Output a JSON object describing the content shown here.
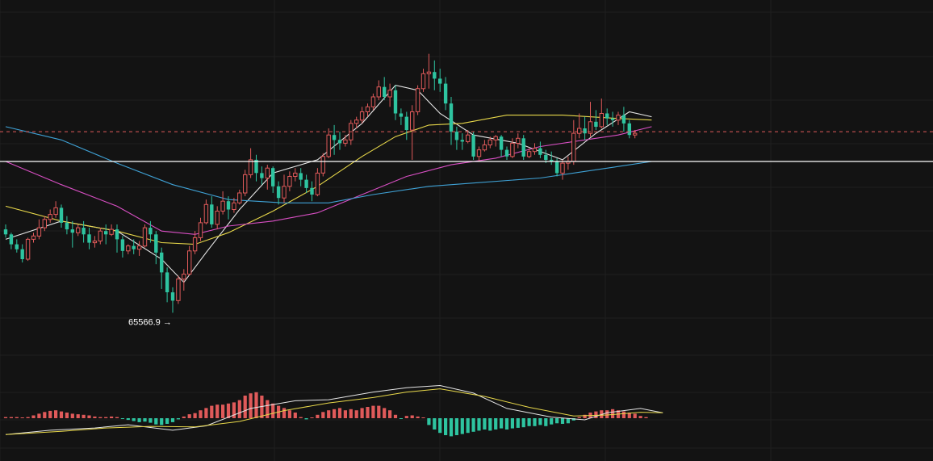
{
  "colors": {
    "background": "#131313",
    "grid": "#1f1f1f",
    "up": "#e05a5a",
    "down": "#2ec4a0",
    "ma_fast": "#e6e6e6",
    "ma_mid": "#e8d84a",
    "ma_slow": "#d94fc4",
    "ma_long": "#3fa2d6",
    "dif": "#e6e6e6",
    "dea": "#e8d84a",
    "reference_line": "#ffffff",
    "current_price_line": "#e05a5a"
  },
  "chart_data": {
    "type": "candlestick",
    "title": "",
    "min_label": {
      "value": "65566.9",
      "arrow": "→",
      "candle_index": 30
    },
    "reference_level": 74700,
    "current_price_level": 76500,
    "price_range": [
      63000,
      82500
    ],
    "grid": true,
    "candles": [
      [
        70600,
        70900,
        70300,
        70100
      ],
      [
        70300,
        70400,
        69700,
        69400
      ],
      [
        69700,
        70000,
        69400,
        69200
      ],
      [
        69400,
        69700,
        68800,
        68600
      ],
      [
        68800,
        70100,
        70000,
        68700
      ],
      [
        70000,
        70400,
        70200,
        69800
      ],
      [
        70200,
        71200,
        70700,
        70000
      ],
      [
        70700,
        71400,
        71200,
        70500
      ],
      [
        71200,
        71800,
        71500,
        71000
      ],
      [
        71500,
        72300,
        71900,
        71300
      ],
      [
        71900,
        72100,
        71000,
        70700
      ],
      [
        71000,
        71400,
        70600,
        70300
      ],
      [
        70600,
        71100,
        70400,
        69500
      ],
      [
        70400,
        70900,
        70700,
        70200
      ],
      [
        70700,
        71100,
        70300,
        69800
      ],
      [
        70300,
        70700,
        69800,
        69400
      ],
      [
        69800,
        70200,
        69900,
        69500
      ],
      [
        69900,
        70700,
        70500,
        69700
      ],
      [
        70500,
        70900,
        70300,
        69700
      ],
      [
        70300,
        70900,
        70600,
        70200
      ],
      [
        70600,
        70900,
        70000,
        69200
      ],
      [
        70000,
        70200,
        69300,
        68900
      ],
      [
        69300,
        69700,
        69600,
        69100
      ],
      [
        69600,
        70000,
        69400,
        69100
      ],
      [
        69400,
        69900,
        69600,
        69000
      ],
      [
        69600,
        70900,
        70700,
        69500
      ],
      [
        70700,
        71100,
        70300,
        69800
      ],
      [
        70300,
        70500,
        69200,
        68500
      ],
      [
        69200,
        69500,
        68000,
        67000
      ],
      [
        68000,
        68300,
        66800,
        66200
      ],
      [
        66800,
        67100,
        66300,
        65567
      ],
      [
        66300,
        67800,
        67600,
        66100
      ],
      [
        67600,
        68200,
        67900,
        66900
      ],
      [
        67900,
        69600,
        69300,
        67800
      ],
      [
        69300,
        70500,
        70100,
        69100
      ],
      [
        70100,
        71300,
        71000,
        69900
      ],
      [
        71000,
        72400,
        72100,
        70900
      ],
      [
        72100,
        72600,
        70900,
        70700
      ],
      [
        70900,
        72000,
        71700,
        70600
      ],
      [
        71700,
        72900,
        72300,
        71500
      ],
      [
        72300,
        72600,
        71800,
        71200
      ],
      [
        71800,
        72500,
        72200,
        71600
      ],
      [
        72200,
        73000,
        72800,
        72100
      ],
      [
        72800,
        74200,
        73900,
        72600
      ],
      [
        73900,
        75500,
        74800,
        73700
      ],
      [
        74800,
        75100,
        74000,
        73500
      ],
      [
        74000,
        74400,
        73700,
        73300
      ],
      [
        73700,
        74500,
        74300,
        73000
      ],
      [
        74300,
        74400,
        73200,
        72800
      ],
      [
        73200,
        73500,
        72500,
        72100
      ],
      [
        72500,
        73900,
        73200,
        72200
      ],
      [
        73200,
        74100,
        73800,
        72900
      ],
      [
        73800,
        74300,
        74000,
        73500
      ],
      [
        74000,
        74300,
        73600,
        73200
      ],
      [
        73600,
        73900,
        73100,
        72800
      ],
      [
        73100,
        73500,
        72700,
        72300
      ],
      [
        72700,
        74300,
        74000,
        72600
      ],
      [
        74000,
        75200,
        75000,
        73800
      ],
      [
        75000,
        76700,
        76300,
        74900
      ],
      [
        76300,
        76900,
        76000,
        75100
      ],
      [
        76000,
        76500,
        75800,
        75400
      ],
      [
        75800,
        76300,
        76000,
        75600
      ],
      [
        76000,
        77200,
        77000,
        75700
      ],
      [
        77000,
        77400,
        77200,
        76700
      ],
      [
        77200,
        78000,
        77700,
        77000
      ],
      [
        77700,
        78200,
        78000,
        77400
      ],
      [
        78000,
        78800,
        78600,
        77800
      ],
      [
        78600,
        79600,
        79200,
        78400
      ],
      [
        79200,
        79800,
        78600,
        78400
      ],
      [
        78600,
        79400,
        79000,
        78000
      ],
      [
        79000,
        79300,
        77600,
        77200
      ],
      [
        77600,
        77900,
        77400,
        76900
      ],
      [
        77400,
        77700,
        76600,
        76000
      ],
      [
        76600,
        78100,
        77700,
        74800
      ],
      [
        77700,
        79300,
        79100,
        77500
      ],
      [
        79100,
        80300,
        80000,
        78900
      ],
      [
        80000,
        81200,
        80100,
        79100
      ],
      [
        80100,
        80800,
        79700,
        79000
      ],
      [
        79700,
        80300,
        79400,
        78900
      ],
      [
        79400,
        79800,
        78200,
        77800
      ],
      [
        78200,
        78600,
        76500,
        75700
      ],
      [
        76500,
        76800,
        76000,
        75400
      ],
      [
        76000,
        76400,
        75900,
        75400
      ],
      [
        75900,
        76600,
        76300,
        75800
      ],
      [
        76300,
        76500,
        75000,
        74800
      ],
      [
        75000,
        75600,
        75400,
        74700
      ],
      [
        75400,
        76000,
        75700,
        75300
      ],
      [
        75700,
        76200,
        76000,
        75500
      ],
      [
        76000,
        76300,
        76200,
        75600
      ],
      [
        76200,
        76300,
        75400,
        75000
      ],
      [
        75400,
        75600,
        75000,
        74800
      ],
      [
        75000,
        76100,
        75800,
        74900
      ],
      [
        75800,
        76400,
        76100,
        75500
      ],
      [
        76100,
        76300,
        75000,
        74800
      ],
      [
        75000,
        75500,
        75300,
        74900
      ],
      [
        75300,
        75800,
        75500,
        75100
      ],
      [
        75500,
        75900,
        75100,
        74900
      ],
      [
        75100,
        75400,
        74800,
        74600
      ],
      [
        74800,
        75300,
        74700,
        74500
      ],
      [
        74700,
        74900,
        74000,
        73800
      ],
      [
        74000,
        74800,
        74600,
        73600
      ],
      [
        74600,
        75000,
        74700,
        74200
      ],
      [
        74700,
        77200,
        76400,
        74500
      ],
      [
        76400,
        77600,
        76700,
        76100
      ],
      [
        76700,
        77400,
        76400,
        76000
      ],
      [
        76400,
        78300,
        77100,
        76200
      ],
      [
        77100,
        77800,
        76800,
        76600
      ],
      [
        76800,
        78500,
        77600,
        76700
      ],
      [
        77600,
        77900,
        77300,
        76900
      ],
      [
        77300,
        77700,
        77200,
        76800
      ],
      [
        77200,
        77700,
        77500,
        76900
      ],
      [
        77500,
        78000,
        77000,
        76500
      ],
      [
        77000,
        77200,
        76300,
        76100
      ],
      [
        76300,
        76600,
        76400,
        76100
      ]
    ],
    "moving_averages": [
      {
        "points": [
          [
            0,
            70000
          ],
          [
            10,
            71100
          ],
          [
            20,
            70500
          ],
          [
            28,
            68800
          ],
          [
            32,
            67400
          ],
          [
            36,
            69200
          ],
          [
            42,
            71800
          ],
          [
            48,
            74000
          ],
          [
            56,
            74800
          ],
          [
            64,
            77000
          ],
          [
            70,
            79300
          ],
          [
            74,
            79000
          ],
          [
            78,
            77600
          ],
          [
            84,
            76300
          ],
          [
            92,
            75800
          ],
          [
            100,
            74800
          ],
          [
            106,
            76400
          ],
          [
            112,
            77700
          ],
          [
            116,
            77400
          ]
        ]
      },
      {
        "points": [
          [
            0,
            72000
          ],
          [
            10,
            71100
          ],
          [
            20,
            70500
          ],
          [
            28,
            69800
          ],
          [
            34,
            69700
          ],
          [
            40,
            70400
          ],
          [
            48,
            71700
          ],
          [
            56,
            73200
          ],
          [
            64,
            75000
          ],
          [
            70,
            76200
          ],
          [
            76,
            76900
          ],
          [
            82,
            77000
          ],
          [
            90,
            77500
          ],
          [
            100,
            77500
          ],
          [
            110,
            77300
          ],
          [
            116,
            77200
          ]
        ]
      },
      {
        "points": [
          [
            0,
            74700
          ],
          [
            10,
            73300
          ],
          [
            20,
            72000
          ],
          [
            28,
            70500
          ],
          [
            34,
            70300
          ],
          [
            40,
            70800
          ],
          [
            48,
            71100
          ],
          [
            56,
            71600
          ],
          [
            64,
            72700
          ],
          [
            72,
            73800
          ],
          [
            80,
            74500
          ],
          [
            88,
            74900
          ],
          [
            96,
            75600
          ],
          [
            104,
            76000
          ],
          [
            110,
            76300
          ],
          [
            116,
            76800
          ]
        ]
      },
      {
        "points": [
          [
            0,
            76800
          ],
          [
            10,
            76000
          ],
          [
            20,
            74600
          ],
          [
            30,
            73300
          ],
          [
            40,
            72400
          ],
          [
            50,
            72200
          ],
          [
            58,
            72200
          ],
          [
            66,
            72700
          ],
          [
            76,
            73200
          ],
          [
            84,
            73400
          ],
          [
            96,
            73700
          ],
          [
            104,
            74100
          ],
          [
            110,
            74400
          ],
          [
            116,
            74700
          ]
        ]
      }
    ],
    "macd": {
      "histogram": [
        0.1,
        0.1,
        0.1,
        0.05,
        0.1,
        0.25,
        0.4,
        0.55,
        0.65,
        0.7,
        0.6,
        0.5,
        0.4,
        0.35,
        0.3,
        0.25,
        0.15,
        0.1,
        0.1,
        0.15,
        0.1,
        -0.05,
        -0.15,
        -0.25,
        -0.35,
        -0.3,
        -0.4,
        -0.55,
        -0.6,
        -0.5,
        -0.35,
        -0.1,
        0.15,
        0.35,
        0.45,
        0.7,
        0.9,
        1.1,
        1.2,
        1.2,
        1.3,
        1.4,
        1.6,
        2.0,
        2.2,
        2.3,
        2.0,
        1.6,
        1.3,
        1.1,
        0.9,
        0.7,
        0.5,
        0.1,
        -0.1,
        0.05,
        0.3,
        0.55,
        0.7,
        0.8,
        0.9,
        0.7,
        0.8,
        0.7,
        0.9,
        1.0,
        1.1,
        1.1,
        0.9,
        0.7,
        0.3,
        -0.05,
        0.2,
        0.25,
        0.15,
        0.05,
        -0.6,
        -1.0,
        -1.3,
        -1.5,
        -1.6,
        -1.5,
        -1.4,
        -1.3,
        -1.2,
        -1.1,
        -1.0,
        -1.1,
        -1.0,
        -0.9,
        -1.0,
        -0.9,
        -0.85,
        -0.8,
        -0.7,
        -0.7,
        -0.6,
        -0.7,
        -0.55,
        -0.45,
        -0.5,
        -0.45,
        -0.2,
        0.1,
        0.3,
        0.5,
        0.6,
        0.7,
        0.7,
        0.8,
        0.7,
        0.6,
        0.5,
        0.4,
        0.2,
        0.1
      ],
      "dif": [
        [
          0,
          -1.5
        ],
        [
          8,
          -1.1
        ],
        [
          16,
          -0.9
        ],
        [
          22,
          -0.6
        ],
        [
          30,
          -1.1
        ],
        [
          36,
          -0.7
        ],
        [
          44,
          0.9
        ],
        [
          52,
          1.6
        ],
        [
          58,
          1.7
        ],
        [
          66,
          2.4
        ],
        [
          72,
          2.8
        ],
        [
          78,
          3.0
        ],
        [
          84,
          2.3
        ],
        [
          90,
          0.9
        ],
        [
          98,
          0.1
        ],
        [
          104,
          -0.15
        ],
        [
          108,
          0.5
        ],
        [
          114,
          0.9
        ],
        [
          118,
          0.5
        ]
      ],
      "dea": [
        [
          0,
          -1.5
        ],
        [
          10,
          -1.2
        ],
        [
          18,
          -0.9
        ],
        [
          26,
          -0.75
        ],
        [
          34,
          -0.8
        ],
        [
          42,
          -0.3
        ],
        [
          50,
          0.7
        ],
        [
          58,
          1.4
        ],
        [
          66,
          1.9
        ],
        [
          72,
          2.4
        ],
        [
          78,
          2.7
        ],
        [
          86,
          2.0
        ],
        [
          94,
          1.0
        ],
        [
          102,
          0.2
        ],
        [
          108,
          0.3
        ],
        [
          114,
          0.55
        ],
        [
          118,
          0.5
        ]
      ]
    }
  }
}
